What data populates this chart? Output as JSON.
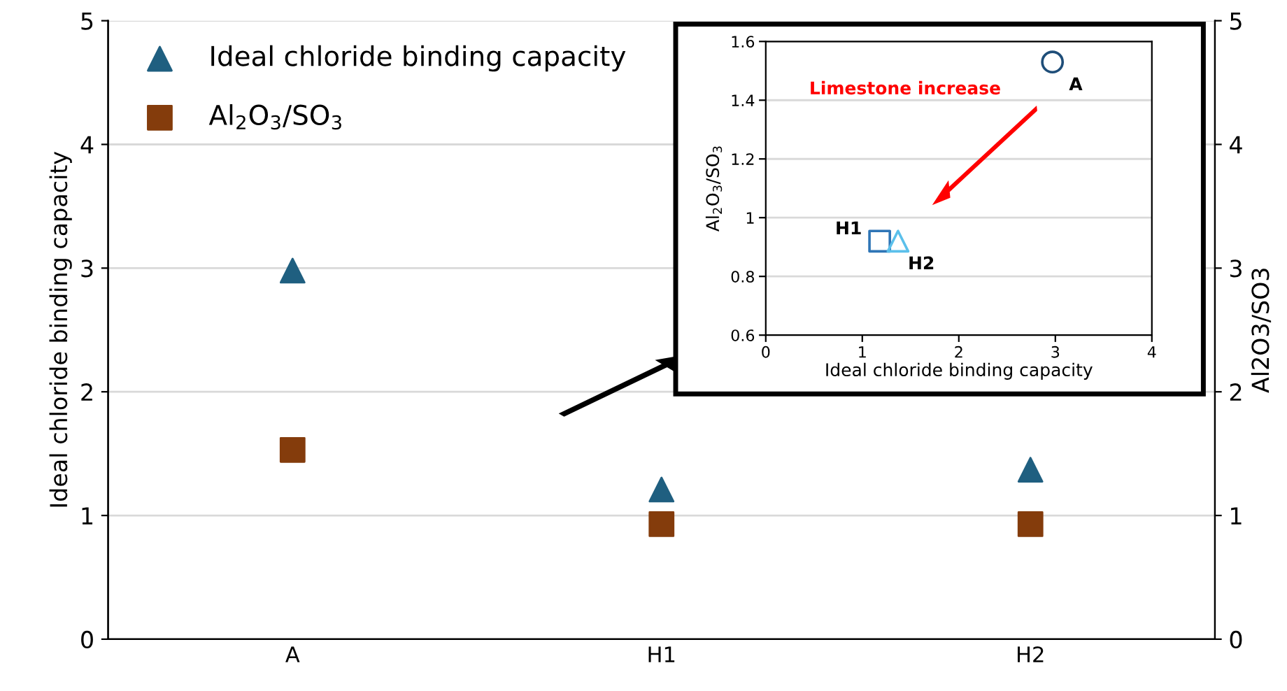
{
  "chart_data": [
    {
      "type": "scatter",
      "categories": [
        "A",
        "H1",
        "H2"
      ],
      "ylabel": "Ideal chloride binding capacity",
      "y2label": "Al2O3/SO3",
      "series": [
        {
          "name": "Ideal chloride binding capacity",
          "color": "#1f5f80",
          "marker": "triangle",
          "values": [
            2.98,
            1.21,
            1.37
          ]
        },
        {
          "name": "Al$_{2}$O$_{3}$/SO$_{3}$",
          "color": "#843c0c",
          "marker": "square",
          "values": [
            1.53,
            0.93,
            0.93
          ]
        }
      ],
      "ylim": [
        0,
        5
      ],
      "yticks": [
        0,
        1,
        2,
        3,
        4,
        5
      ],
      "y2lim": [
        0,
        5
      ],
      "y2ticks": [
        0,
        1,
        2,
        3,
        4,
        5
      ],
      "grid": "y",
      "legend": "top left"
    },
    {
      "type": "scatter",
      "xlabel": "Ideal chloride binding capacity",
      "ylabel": "Al$_{2}$O$_{3}$/SO$_{3}$",
      "series": [
        {
          "name": "A",
          "color": "#1f4e79",
          "marker": "circle",
          "x": [
            2.97
          ],
          "values": [
            1.53
          ]
        },
        {
          "name": "H1",
          "color": "#2e75b6",
          "marker": "square",
          "x": [
            1.18
          ],
          "values": [
            0.92
          ]
        },
        {
          "name": "H2",
          "color": "#5bc0eb",
          "marker": "triangle",
          "x": [
            1.37
          ],
          "values": [
            0.92
          ]
        }
      ],
      "annotations": [
        "Limestone increase"
      ],
      "xlim": [
        0,
        4
      ],
      "xticks": [
        0,
        1,
        2,
        3,
        4
      ],
      "ylim": [
        0.6,
        1.6
      ],
      "yticks": [
        0.6,
        0.8,
        1,
        1.2,
        1.4,
        1.6
      ],
      "grid": "y"
    }
  ]
}
